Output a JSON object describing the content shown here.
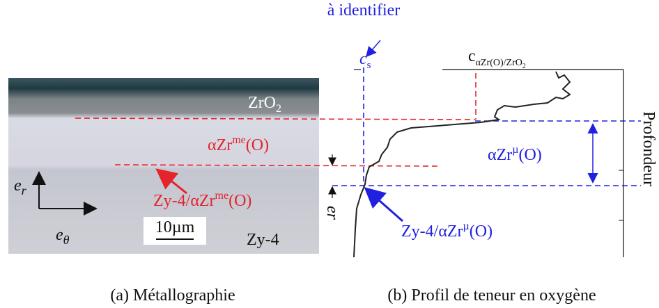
{
  "panel_a": {
    "caption": "(a) Métallographie",
    "zro2": {
      "base": "ZrO",
      "sub": "2"
    },
    "alpha_layer": {
      "base": "αZr",
      "sup": "me",
      "tail": "(O)"
    },
    "interface": {
      "base": "Zy-4/αZr",
      "sup": "me",
      "tail": "(O)"
    },
    "e_r": {
      "base": "e",
      "sub": "r"
    },
    "e_theta": {
      "base": "e",
      "sub": "θ"
    },
    "scale_bar": "10µm",
    "substrate": "Zy-4"
  },
  "panel_b": {
    "caption": "(b) Profil de teneur en oxygène",
    "annotation": "à identifier",
    "c_s": {
      "base": "c",
      "sub": "s"
    },
    "c_eq": {
      "base": "c",
      "sub": "αZr(O)/ZrO",
      "subsub": "2"
    },
    "alpha_layer": {
      "base": "αZr",
      "sup": "µ",
      "tail": "(O)"
    },
    "interface": {
      "base": "Zy-4/αZr",
      "sup": "µ",
      "tail": "(O)"
    },
    "thickness": {
      "base": "e",
      "sub": "r"
    },
    "depth_axis": "Profondeur"
  }
}
